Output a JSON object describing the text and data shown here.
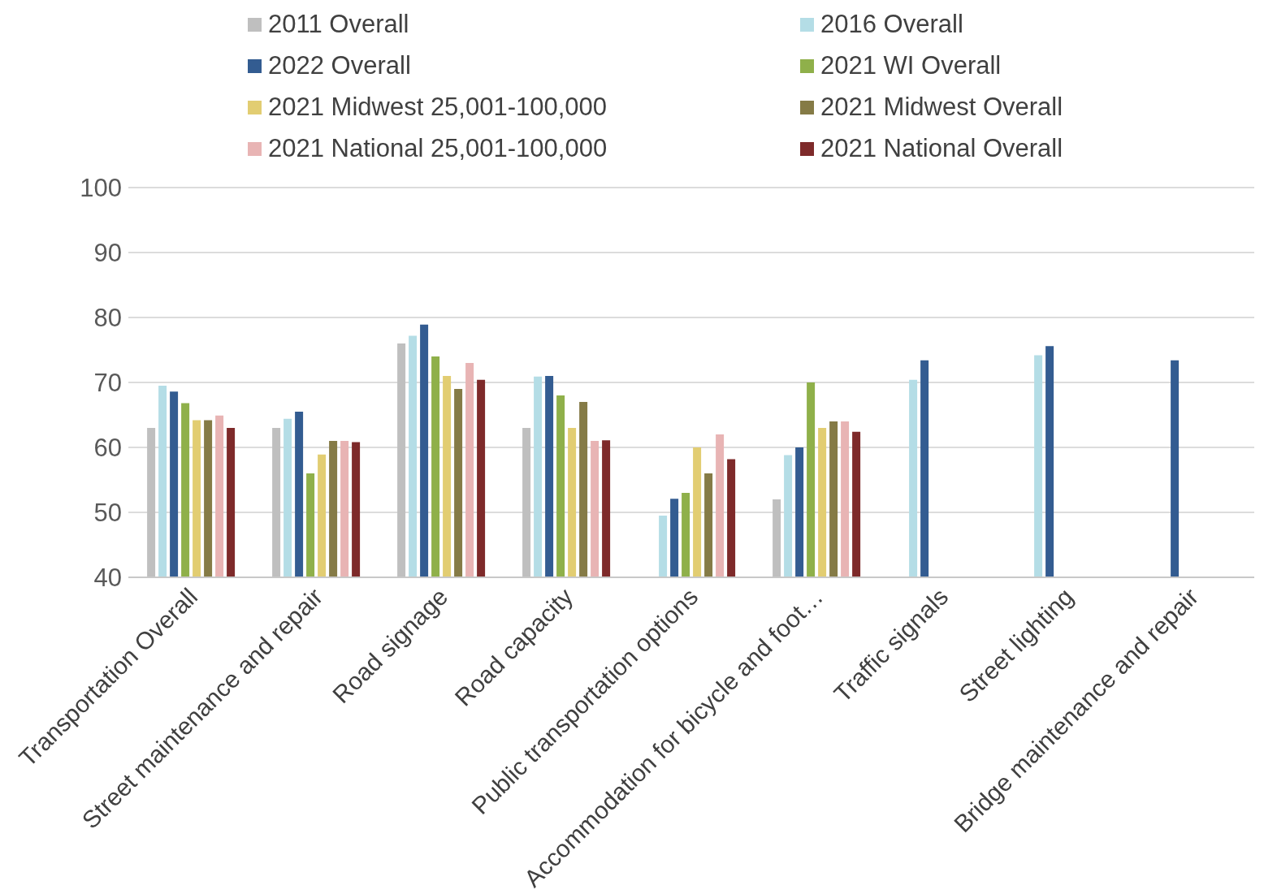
{
  "chart_data": {
    "type": "bar",
    "categories": [
      "Transportation Overall",
      "Street maintenance and repair",
      "Road signage",
      "Road capacity",
      "Public transportation options",
      "Accommodation for bicycle and foot…",
      "Traffic signals",
      "Street lighting",
      "Bridge maintenance and repair"
    ],
    "series": [
      {
        "name": "2011 Overall",
        "color": "#bfbfbf",
        "values": [
          63,
          63,
          76,
          63,
          null,
          52,
          null,
          null,
          null
        ]
      },
      {
        "name": "2016 Overall",
        "color": "#b4dde6",
        "values": [
          69.5,
          64.4,
          77.2,
          70.9,
          49.5,
          58.8,
          70.4,
          74.2,
          null
        ]
      },
      {
        "name": "2022 Overall",
        "color": "#335c91",
        "values": [
          68.6,
          65.5,
          78.9,
          71,
          52.1,
          60,
          73.4,
          75.6,
          73.4
        ]
      },
      {
        "name": "2021 WI Overall",
        "color": "#8fb04a",
        "values": [
          66.8,
          56,
          74,
          68,
          53,
          70,
          null,
          null,
          null
        ]
      },
      {
        "name": "2021 Midwest 25,001-100,000",
        "color": "#e2cd72",
        "values": [
          64.2,
          58.9,
          71,
          63,
          60,
          63,
          null,
          null,
          null
        ]
      },
      {
        "name": "2021 Midwest Overall",
        "color": "#857b46",
        "values": [
          64.2,
          61,
          69,
          67,
          56,
          64,
          null,
          null,
          null
        ]
      },
      {
        "name": "2021 National 25,001-100,000",
        "color": "#e8b4b4",
        "values": [
          64.9,
          61,
          73,
          61,
          62,
          64,
          null,
          null,
          null
        ]
      },
      {
        "name": "2021 National Overall",
        "color": "#7e2a2a",
        "values": [
          63,
          60.8,
          70.4,
          61.1,
          58.2,
          62.4,
          null,
          null,
          null
        ]
      }
    ],
    "ylim": [
      40,
      100
    ],
    "yticks": [
      40,
      50,
      60,
      70,
      80,
      90,
      100
    ],
    "grid": "y",
    "legend": "top"
  }
}
